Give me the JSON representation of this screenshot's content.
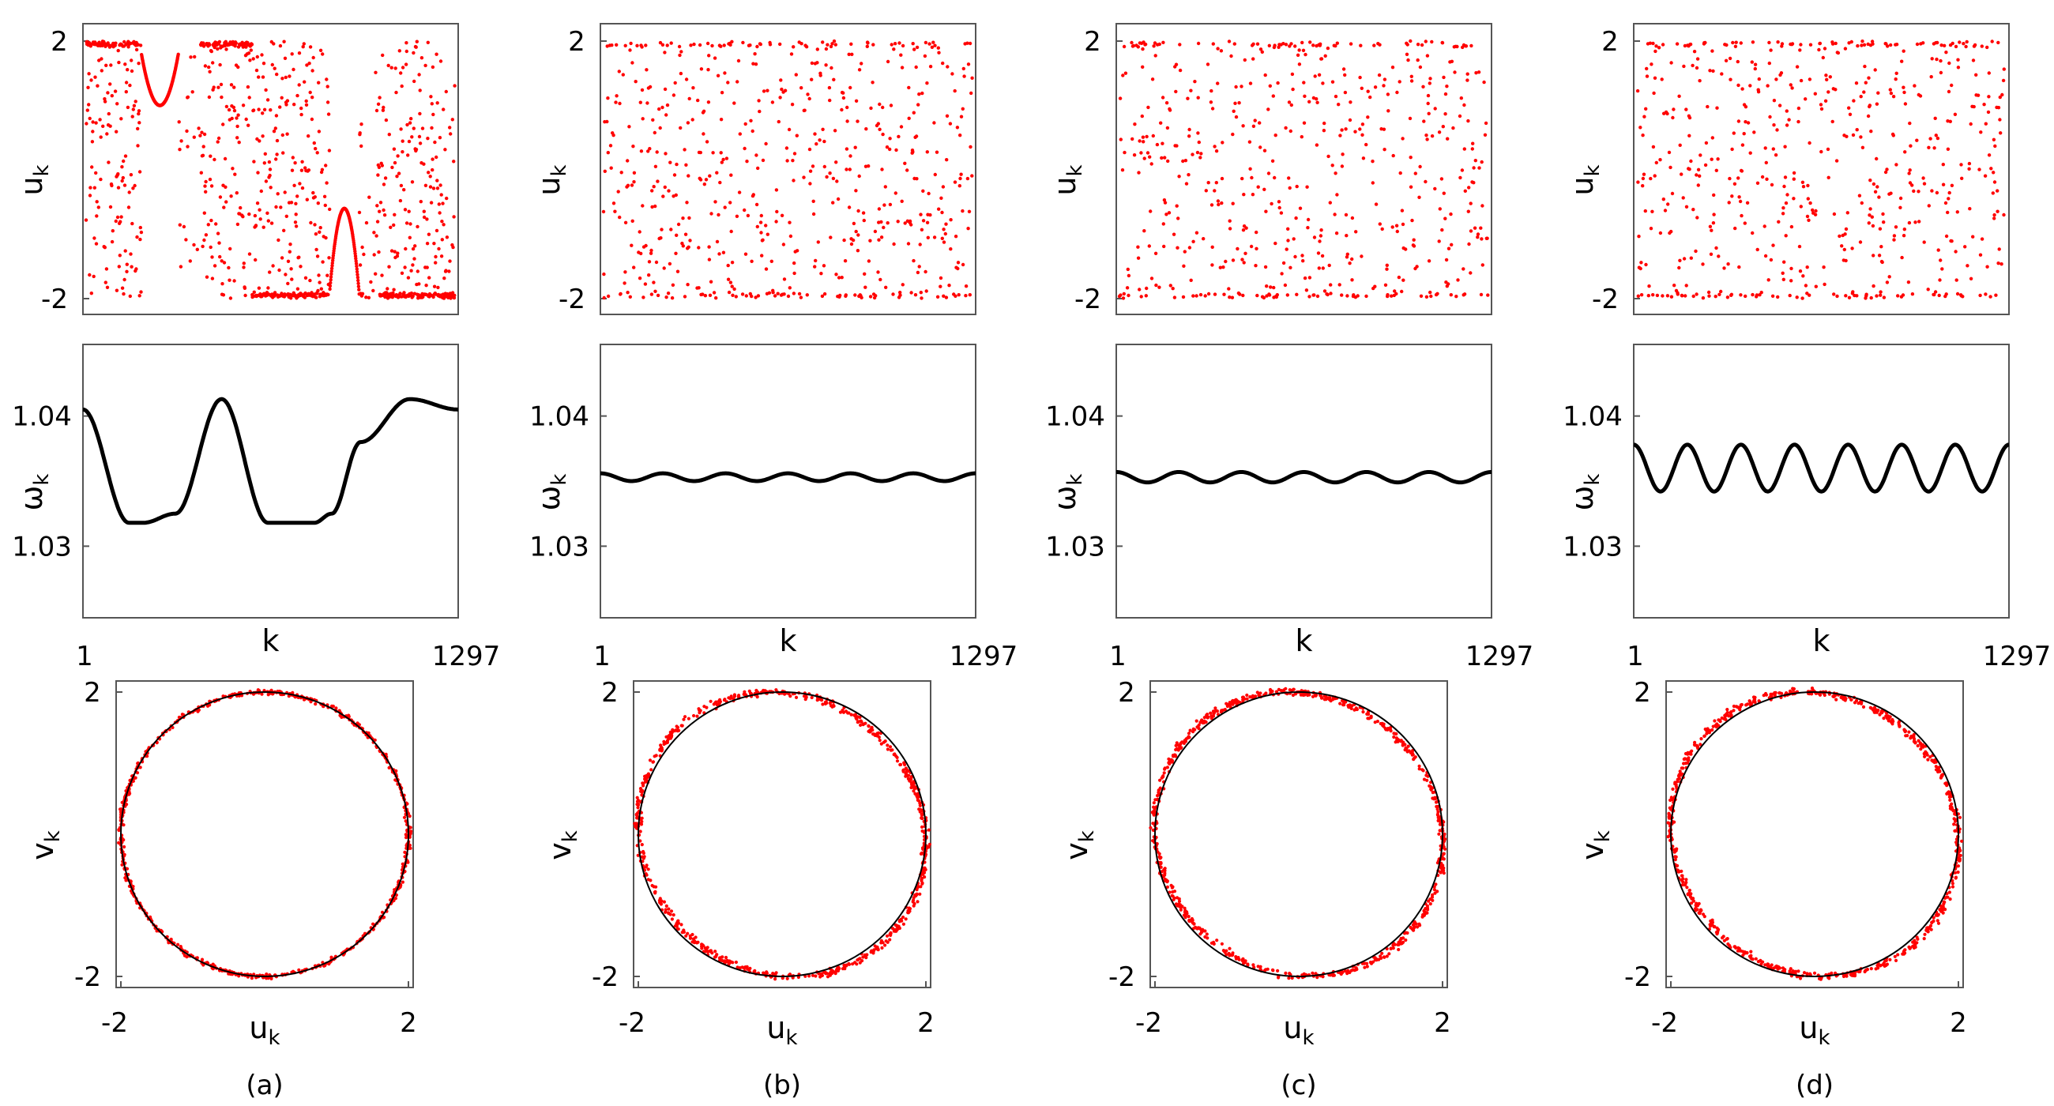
{
  "figure": {
    "panels": [
      {
        "caption": "(a)",
        "omega_profile": "dual_arc",
        "nstrips": 2
      },
      {
        "caption": "(b)",
        "omega_profile": "sine",
        "omega_amplitude": 0.0003,
        "omega_mean": 1.0353,
        "nwaves": 6
      },
      {
        "caption": "(c)",
        "omega_profile": "sine",
        "omega_amplitude": 0.0004,
        "omega_mean": 1.0353,
        "nwaves": 6
      },
      {
        "caption": "(d)",
        "omega_profile": "sine",
        "omega_amplitude": 0.0018,
        "omega_mean": 1.036,
        "nwaves": 7
      }
    ],
    "row_top": {
      "ylabel": "u",
      "ylabel_sub": "k",
      "tick_top": "2",
      "tick_bottom": "-2",
      "point_color": "#ff0000"
    },
    "row_mid": {
      "ylabel": "ω",
      "ylabel_sub": "k",
      "tick_upper": "1.04",
      "tick_lower": "1.03",
      "xlabel": "k",
      "xtick_left": "1",
      "xtick_right": "1297",
      "line_color": "#000000"
    },
    "row_bottom": {
      "ylabel": "v",
      "ylabel_sub": "k",
      "xlabel": "u",
      "xlabel_sub": "k",
      "tick_top": "2",
      "tick_bottom": "-2",
      "xtick_left": "-2",
      "xtick_right": "2",
      "point_color": "#ff0000",
      "circle_color": "#000000"
    }
  },
  "chart_data": [
    {
      "type": "scatter",
      "title": "",
      "panel": "(a) top",
      "xlabel": "",
      "ylabel": "u_k",
      "xlim": [
        1,
        1297
      ],
      "ylim": [
        -2,
        2
      ],
      "series": [
        {
          "values_description_free": true,
          "x": [
            1,
            90,
            160,
            230,
            260,
            300,
            400,
            500,
            600,
            700,
            720,
            780,
            820,
            900,
            1000,
            1100,
            1297
          ],
          "values": [
            2.0,
            1.9,
            1.0,
            1.0,
            1.8,
            2.0,
            1.5,
            -1.9,
            -1.95,
            -1.9,
            -0.6,
            -1.0,
            -1.9,
            -1.9,
            1.5,
            0.5,
            1.9
          ]
        }
      ]
    },
    {
      "type": "line",
      "title": "",
      "panel": "(a) middle",
      "xlabel": "k",
      "ylabel": "ω_k",
      "xlim": [
        1,
        1297
      ],
      "ylim": [
        1.0245,
        1.0455
      ],
      "x": [
        1,
        160,
        210,
        320,
        480,
        640,
        800,
        860,
        960,
        1130,
        1297
      ],
      "series": [
        {
          "values": [
            1.0405,
            1.0318,
            1.0318,
            1.0325,
            1.0413,
            1.0318,
            1.0318,
            1.0325,
            1.038,
            1.0413,
            1.0405
          ]
        }
      ]
    },
    {
      "type": "line",
      "title": "",
      "panel": "(b) middle",
      "xlabel": "k",
      "ylabel": "ω_k",
      "xlim": [
        1,
        1297
      ],
      "ylim": [
        1.0245,
        1.0455
      ],
      "x": [
        1,
        108,
        216,
        324,
        432,
        540,
        648,
        756,
        864,
        972,
        1080,
        1188,
        1297
      ],
      "series": [
        {
          "values": [
            1.035,
            1.0356,
            1.035,
            1.0356,
            1.035,
            1.0356,
            1.035,
            1.0356,
            1.035,
            1.0356,
            1.035,
            1.0356,
            1.035
          ]
        }
      ]
    },
    {
      "type": "line",
      "title": "",
      "panel": "(c) middle",
      "xlabel": "k",
      "ylabel": "ω_k",
      "xlim": [
        1,
        1297
      ],
      "ylim": [
        1.0245,
        1.0455
      ],
      "x": [
        1,
        108,
        216,
        324,
        432,
        540,
        648,
        756,
        864,
        972,
        1080,
        1188,
        1297
      ],
      "series": [
        {
          "values": [
            1.0349,
            1.0357,
            1.0349,
            1.0357,
            1.0349,
            1.0357,
            1.0349,
            1.0357,
            1.0349,
            1.0357,
            1.0349,
            1.0357,
            1.0349
          ]
        }
      ]
    },
    {
      "type": "line",
      "title": "",
      "panel": "(d) middle",
      "xlabel": "k",
      "ylabel": "ω_k",
      "xlim": [
        1,
        1297
      ],
      "ylim": [
        1.0245,
        1.0455
      ],
      "x": [
        1,
        93,
        185,
        278,
        370,
        463,
        556,
        648,
        741,
        834,
        926,
        1019,
        1111,
        1204,
        1297
      ],
      "series": [
        {
          "values": [
            1.0343,
            1.0378,
            1.0342,
            1.0378,
            1.0342,
            1.0378,
            1.0342,
            1.0378,
            1.0342,
            1.0378,
            1.0342,
            1.0378,
            1.0342,
            1.0378,
            1.0342
          ]
        }
      ]
    },
    {
      "type": "scatter",
      "title": "",
      "panel": "(a)-(d) bottom",
      "xlabel": "u_k",
      "ylabel": "v_k",
      "xlim": [
        -2,
        2
      ],
      "ylim": [
        -2,
        2
      ],
      "series": [
        {
          "x": [
            2.0,
            1.4,
            0.0,
            -1.4,
            -2.0,
            -1.4,
            0.0,
            1.4
          ],
          "values": [
            0.0,
            1.4,
            2.0,
            1.4,
            0.0,
            -1.4,
            -2.0,
            -1.4
          ]
        }
      ]
    }
  ]
}
